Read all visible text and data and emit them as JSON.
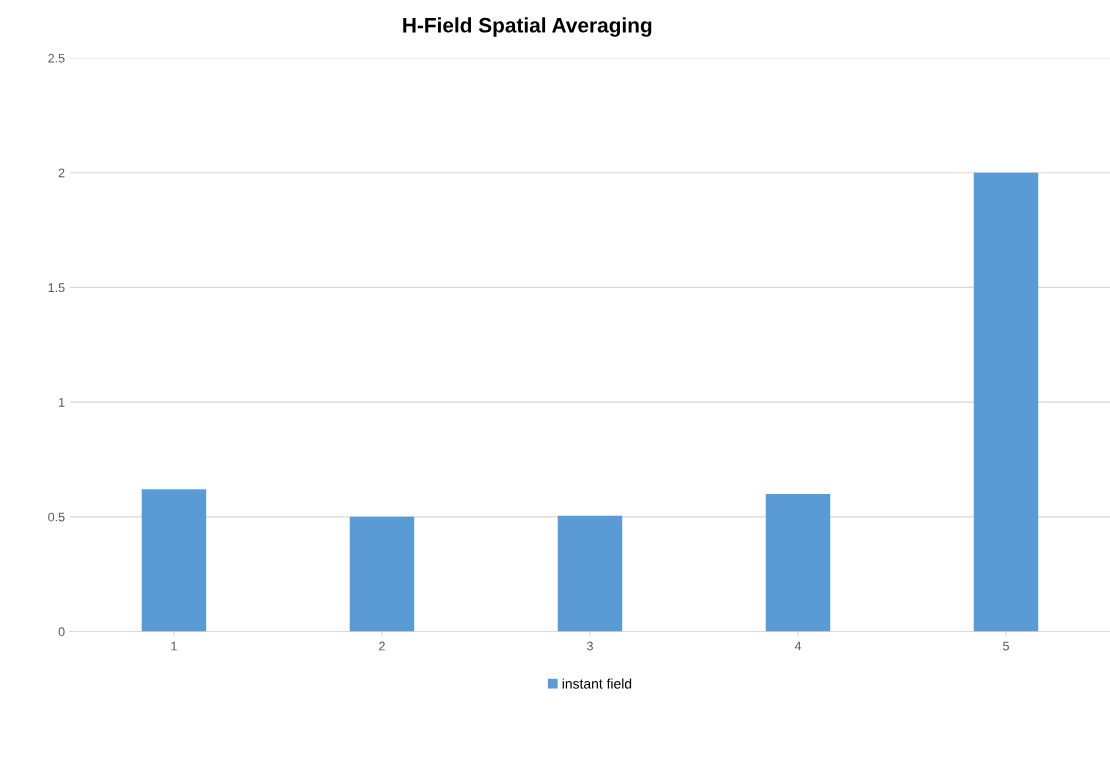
{
  "chart_data": {
    "type": "bar",
    "title": "H-Field Spatial Averaging",
    "categories": [
      "1",
      "2",
      "3",
      "4",
      "5"
    ],
    "series": [
      {
        "name": "instant field",
        "color": "#5b9bd5",
        "values": [
          0.62,
          0.5,
          0.505,
          0.6,
          2.0
        ]
      }
    ],
    "ylim": [
      0,
      2.5
    ],
    "yticks": [
      0,
      0.5,
      1,
      1.5,
      2,
      2.5
    ],
    "grid": "y",
    "legend": "bottom"
  }
}
